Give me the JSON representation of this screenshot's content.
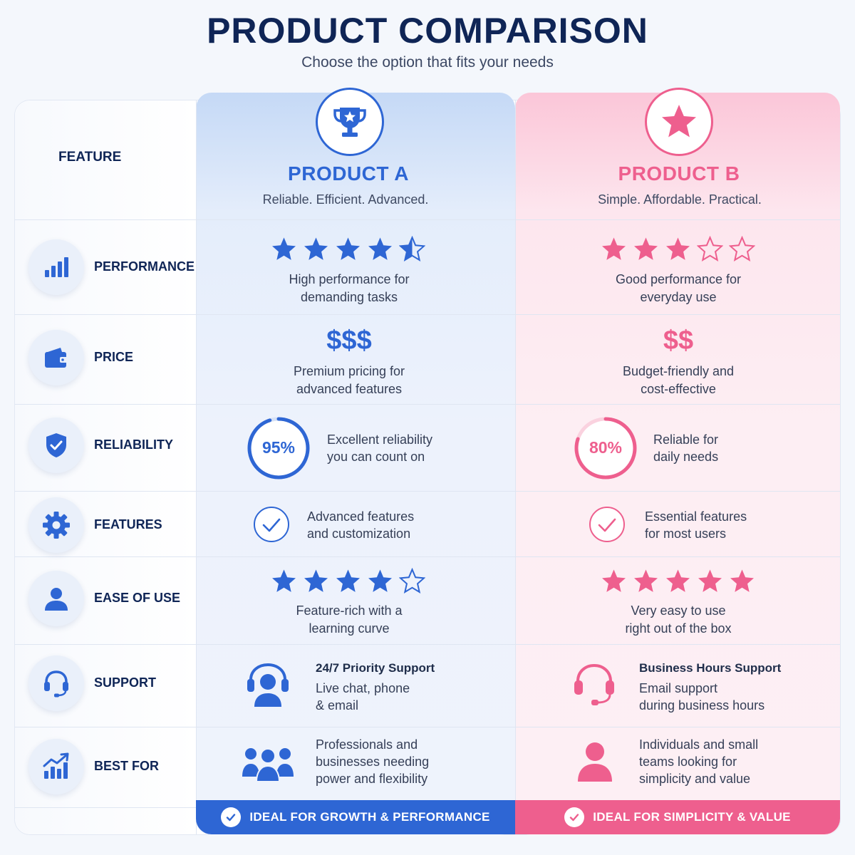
{
  "header": {
    "title": "PRODUCT COMPARISON",
    "subtitle": "Choose the option that fits your needs"
  },
  "colors": {
    "product_a": "#2e66d4",
    "product_b": "#ee5f8e",
    "title": "#0f2556"
  },
  "table": {
    "feature_header": "FEATURE",
    "products": [
      {
        "name": "PRODUCT A",
        "tagline": "Reliable. Efficient. Advanced.",
        "icon": "trophy-icon"
      },
      {
        "name": "PRODUCT B",
        "tagline": "Simple. Affordable. Practical.",
        "icon": "star-icon"
      }
    ],
    "rows": [
      {
        "label": "PERFORMANCE",
        "icon": "bar-chart-icon",
        "a": {
          "rating": 4.5,
          "line1": "High performance for",
          "line2": "demanding tasks"
        },
        "b": {
          "rating": 3,
          "line1": "Good performance for",
          "line2": "everyday use"
        }
      },
      {
        "label": "PRICE",
        "icon": "wallet-icon",
        "a": {
          "price": "$$$",
          "line1": "Premium pricing for",
          "line2": "advanced features"
        },
        "b": {
          "price": "$$",
          "line1": "Budget-friendly and",
          "line2": "cost-effective"
        }
      },
      {
        "label": "RELIABILITY",
        "icon": "shield-check-icon",
        "a": {
          "percent": "95%",
          "percent_value": 95,
          "line1": "Excellent reliability",
          "line2": "you can count on"
        },
        "b": {
          "percent": "80%",
          "percent_value": 80,
          "line1": "Reliable for",
          "line2": "daily needs"
        }
      },
      {
        "label": "FEATURES",
        "icon": "gear-icon",
        "a": {
          "line1": "Advanced features",
          "line2": "and customization"
        },
        "b": {
          "line1": "Essential features",
          "line2": "for most users"
        }
      },
      {
        "label": "EASE OF USE",
        "icon": "user-icon",
        "a": {
          "rating": 4,
          "line1": "Feature-rich with a",
          "line2": "learning curve"
        },
        "b": {
          "rating": 5,
          "line1": "Very easy to use",
          "line2": "right out of the box"
        }
      },
      {
        "label": "SUPPORT",
        "icon": "headset-icon",
        "a": {
          "title": "24/7 Priority Support",
          "line1": "Live chat, phone",
          "line2": "& email"
        },
        "b": {
          "title": "Business Hours Support",
          "line1": "Email support",
          "line2": "during business hours"
        }
      },
      {
        "label": "BEST FOR",
        "icon": "growth-chart-icon",
        "a": {
          "line1": "Professionals and",
          "line2": "businesses needing",
          "line3": "power and flexibility"
        },
        "b": {
          "line1": "Individuals and small",
          "line2": "teams looking for",
          "line3": "simplicity and value"
        }
      }
    ],
    "footer": {
      "a": "IDEAL FOR GROWTH & PERFORMANCE",
      "b": "IDEAL FOR SIMPLICITY & VALUE"
    }
  }
}
